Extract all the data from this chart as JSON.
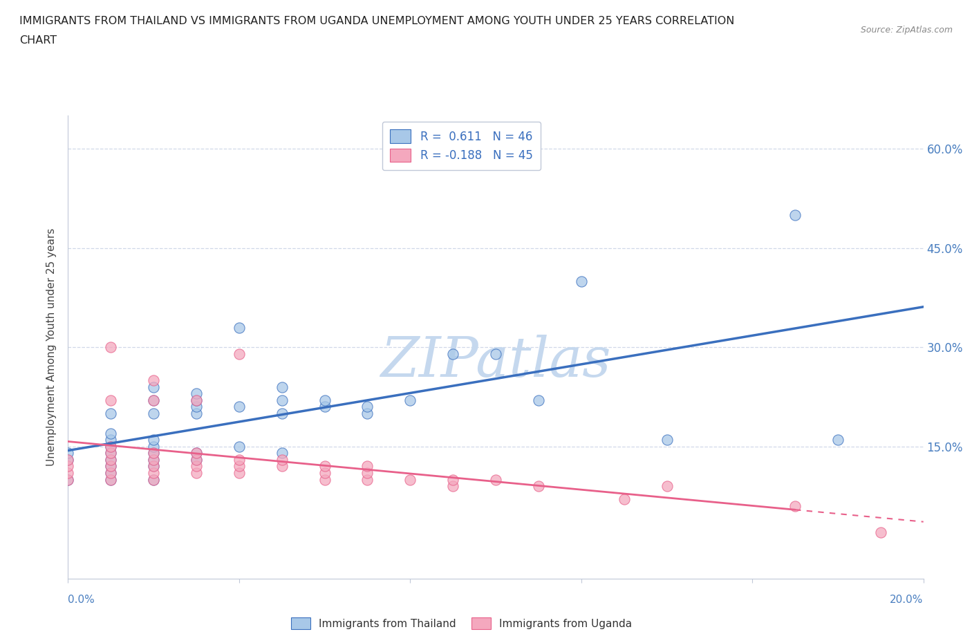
{
  "title_line1": "IMMIGRANTS FROM THAILAND VS IMMIGRANTS FROM UGANDA UNEMPLOYMENT AMONG YOUTH UNDER 25 YEARS CORRELATION",
  "title_line2": "CHART",
  "source_text": "Source: ZipAtlas.com",
  "ylabel": "Unemployment Among Youth under 25 years",
  "R_thailand": 0.611,
  "N_thailand": 46,
  "R_uganda": -0.188,
  "N_uganda": 45,
  "color_thailand": "#a8c8e8",
  "color_uganda": "#f4a8be",
  "color_line_thailand": "#3a6fbe",
  "color_line_uganda": "#e8608a",
  "watermark_color": "#c5d8ee",
  "background_color": "#ffffff",
  "ytick_labels": [
    "15.0%",
    "30.0%",
    "45.0%",
    "60.0%"
  ],
  "ytick_values": [
    0.15,
    0.3,
    0.45,
    0.6
  ],
  "xlim": [
    0.0,
    0.2
  ],
  "ylim": [
    -0.05,
    0.65
  ],
  "thailand_scatter_x": [
    0.0,
    0.0,
    0.0,
    0.01,
    0.01,
    0.01,
    0.01,
    0.01,
    0.01,
    0.01,
    0.01,
    0.01,
    0.02,
    0.02,
    0.02,
    0.02,
    0.02,
    0.02,
    0.02,
    0.02,
    0.02,
    0.03,
    0.03,
    0.03,
    0.03,
    0.03,
    0.03,
    0.04,
    0.04,
    0.04,
    0.05,
    0.05,
    0.05,
    0.05,
    0.06,
    0.06,
    0.07,
    0.07,
    0.08,
    0.09,
    0.1,
    0.11,
    0.12,
    0.14,
    0.17,
    0.18
  ],
  "thailand_scatter_y": [
    0.1,
    0.13,
    0.14,
    0.1,
    0.11,
    0.12,
    0.13,
    0.14,
    0.15,
    0.16,
    0.17,
    0.2,
    0.1,
    0.12,
    0.13,
    0.14,
    0.15,
    0.16,
    0.2,
    0.22,
    0.24,
    0.13,
    0.14,
    0.2,
    0.21,
    0.22,
    0.23,
    0.15,
    0.21,
    0.33,
    0.14,
    0.2,
    0.22,
    0.24,
    0.21,
    0.22,
    0.2,
    0.21,
    0.22,
    0.29,
    0.29,
    0.22,
    0.4,
    0.16,
    0.5,
    0.16
  ],
  "uganda_scatter_x": [
    0.0,
    0.0,
    0.0,
    0.0,
    0.01,
    0.01,
    0.01,
    0.01,
    0.01,
    0.01,
    0.01,
    0.01,
    0.02,
    0.02,
    0.02,
    0.02,
    0.02,
    0.02,
    0.02,
    0.03,
    0.03,
    0.03,
    0.03,
    0.03,
    0.04,
    0.04,
    0.04,
    0.04,
    0.05,
    0.05,
    0.06,
    0.06,
    0.06,
    0.07,
    0.07,
    0.07,
    0.08,
    0.09,
    0.09,
    0.1,
    0.11,
    0.13,
    0.14,
    0.17,
    0.19
  ],
  "uganda_scatter_y": [
    0.1,
    0.11,
    0.12,
    0.13,
    0.1,
    0.11,
    0.12,
    0.13,
    0.14,
    0.15,
    0.22,
    0.3,
    0.1,
    0.11,
    0.12,
    0.13,
    0.14,
    0.22,
    0.25,
    0.11,
    0.12,
    0.13,
    0.14,
    0.22,
    0.11,
    0.12,
    0.13,
    0.29,
    0.12,
    0.13,
    0.1,
    0.11,
    0.12,
    0.1,
    0.11,
    0.12,
    0.1,
    0.09,
    0.1,
    0.1,
    0.09,
    0.07,
    0.09,
    0.06,
    0.02
  ],
  "legend_label_thailand": "Immigrants from Thailand",
  "legend_label_uganda": "Immigrants from Uganda",
  "tick_color": "#4a7fc0",
  "grid_color": "#d0d8e8",
  "spine_color": "#c0c8d8"
}
